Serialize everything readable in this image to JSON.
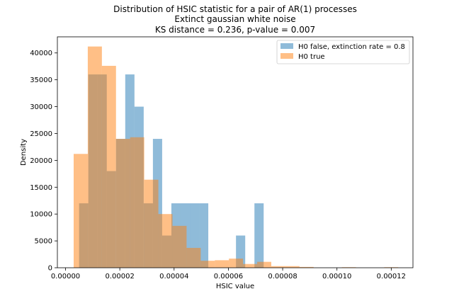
{
  "chart_data": {
    "type": "bar",
    "title": "Distribution of HSIC statistic for a pair of AR(1) processes",
    "subtitle": "Extinct gaussian white noise",
    "stats_line": "KS distance = 0.236, p-value = 0.007",
    "xlabel": "HSIC value",
    "ylabel": "Density",
    "xlim": [
      -3e-06,
      0.000128
    ],
    "ylim": [
      0,
      43000
    ],
    "xticks": [
      0.0,
      2e-05,
      4e-05,
      6e-05,
      8e-05,
      0.0001,
      0.00012
    ],
    "xtick_labels": [
      "0.00000",
      "0.00002",
      "0.00004",
      "0.00006",
      "0.00008",
      "0.00010",
      "0.00012"
    ],
    "yticks": [
      0,
      5000,
      10000,
      15000,
      20000,
      25000,
      30000,
      35000,
      40000
    ],
    "ytick_labels": [
      "0",
      "5000",
      "10000",
      "15000",
      "20000",
      "25000",
      "30000",
      "35000",
      "40000"
    ],
    "legend_position": "top-right",
    "series": [
      {
        "name": "H0 false, extinction rate = 0.8",
        "color": "#1f77b4",
        "opacity": 0.5,
        "bins": [
          {
            "x0": 5e-06,
            "x1": 8.4e-06,
            "value": 12000
          },
          {
            "x0": 8.4e-06,
            "x1": 1.18e-05,
            "value": 36000
          },
          {
            "x0": 1.18e-05,
            "x1": 1.52e-05,
            "value": 36000
          },
          {
            "x0": 1.52e-05,
            "x1": 1.86e-05,
            "value": 18000
          },
          {
            "x0": 1.86e-05,
            "x1": 2.2e-05,
            "value": 24000
          },
          {
            "x0": 2.2e-05,
            "x1": 2.54e-05,
            "value": 36000
          },
          {
            "x0": 2.54e-05,
            "x1": 2.88e-05,
            "value": 30000
          },
          {
            "x0": 2.88e-05,
            "x1": 3.22e-05,
            "value": 12000
          },
          {
            "x0": 3.22e-05,
            "x1": 3.56e-05,
            "value": 24000
          },
          {
            "x0": 3.56e-05,
            "x1": 3.9e-05,
            "value": 6000
          },
          {
            "x0": 3.9e-05,
            "x1": 4.24e-05,
            "value": 12000
          },
          {
            "x0": 4.24e-05,
            "x1": 4.58e-05,
            "value": 12000
          },
          {
            "x0": 4.58e-05,
            "x1": 4.92e-05,
            "value": 12000
          },
          {
            "x0": 4.92e-05,
            "x1": 5.26e-05,
            "value": 12000
          },
          {
            "x0": 6.28e-05,
            "x1": 6.62e-05,
            "value": 6000
          },
          {
            "x0": 6.96e-05,
            "x1": 7.3e-05,
            "value": 12000
          }
        ]
      },
      {
        "name": "H0 true",
        "color": "#ff7f0e",
        "opacity": 0.5,
        "bins": [
          {
            "x0": 3e-06,
            "x1": 8.2e-06,
            "value": 21200
          },
          {
            "x0": 8.2e-06,
            "x1": 1.34e-05,
            "value": 41200
          },
          {
            "x0": 1.34e-05,
            "x1": 1.86e-05,
            "value": 37600
          },
          {
            "x0": 1.86e-05,
            "x1": 2.38e-05,
            "value": 24000
          },
          {
            "x0": 2.38e-05,
            "x1": 2.9e-05,
            "value": 24300
          },
          {
            "x0": 2.9e-05,
            "x1": 3.42e-05,
            "value": 16400
          },
          {
            "x0": 3.42e-05,
            "x1": 3.94e-05,
            "value": 10000
          },
          {
            "x0": 3.94e-05,
            "x1": 4.46e-05,
            "value": 7800
          },
          {
            "x0": 4.46e-05,
            "x1": 4.98e-05,
            "value": 3700
          },
          {
            "x0": 4.98e-05,
            "x1": 5.5e-05,
            "value": 1300
          },
          {
            "x0": 5.5e-05,
            "x1": 6.02e-05,
            "value": 1400
          },
          {
            "x0": 6.02e-05,
            "x1": 6.54e-05,
            "value": 1700
          },
          {
            "x0": 6.54e-05,
            "x1": 7.06e-05,
            "value": 700
          },
          {
            "x0": 7.06e-05,
            "x1": 7.58e-05,
            "value": 1100
          },
          {
            "x0": 7.58e-05,
            "x1": 8.1e-05,
            "value": 300
          },
          {
            "x0": 8.1e-05,
            "x1": 8.62e-05,
            "value": 300
          },
          {
            "x0": 8.62e-05,
            "x1": 9.14e-05,
            "value": 150
          },
          {
            "x0": 0.0001018,
            "x1": 0.000107,
            "value": 100
          },
          {
            "x0": 0.0001174,
            "x1": 0.0001226,
            "value": 100
          }
        ]
      }
    ]
  }
}
